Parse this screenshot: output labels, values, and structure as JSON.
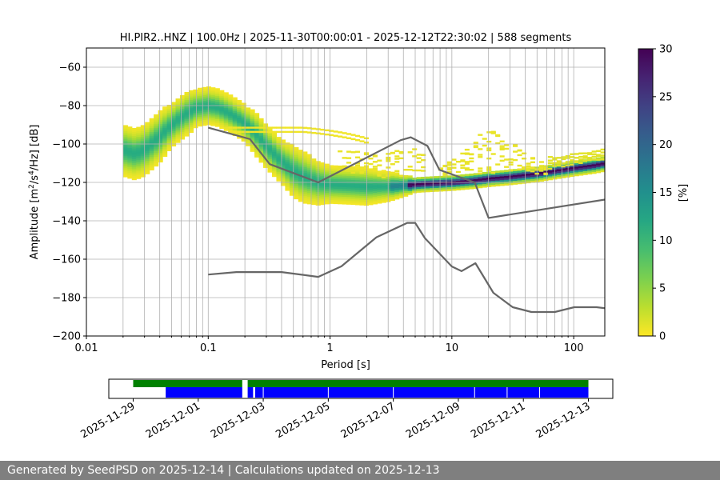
{
  "footer": {
    "text": "Generated by SeedPSD on 2025-12-14 | Calculations updated on 2025-12-13"
  },
  "colors": {
    "nlnm_nhnm": "#666666",
    "grid": "#b0b0b0",
    "coverage_green": "#008000",
    "coverage_blue": "#0000ff"
  },
  "chart_data": [
    {
      "type": "heatmap",
      "title": "HI.PIR2..HNZ | 100.0Hz | 2025-11-30T00:00:01 - 2025-12-12T22:30:02 | 588 segments",
      "xlabel_prefix": "Period [s]",
      "ylabel_text": "Amplitude [m",
      "ylabel_parts": [
        "Amplitude [m",
        "2",
        "/s",
        "4",
        "/Hz] [dB]"
      ],
      "x_scale": "log",
      "xlim": [
        0.01,
        180
      ],
      "ylim": [
        -200,
        -50
      ],
      "x_ticks": [
        0.01,
        0.1,
        1,
        10,
        100
      ],
      "x_tick_labels": [
        "0.01",
        "0.1",
        "1",
        "10",
        "100"
      ],
      "y_ticks": [
        -200,
        -180,
        -160,
        -140,
        -120,
        -100,
        -80,
        -60
      ],
      "y_tick_labels": [
        "−200",
        "−180",
        "−160",
        "−140",
        "−120",
        "−100",
        "−80",
        "−60"
      ],
      "grid": true,
      "colorbar": {
        "label": "[%]",
        "min": 0,
        "max": 30,
        "ticks": [
          0,
          5,
          10,
          15,
          20,
          25,
          30
        ],
        "tick_labels": [
          "0",
          "5",
          "10",
          "15",
          "20",
          "25",
          "30"
        ],
        "colormap": "viridis_r"
      },
      "psd_mode": {
        "period": [
          0.02,
          0.025,
          0.03,
          0.04,
          0.05,
          0.06,
          0.07,
          0.08,
          0.1,
          0.12,
          0.15,
          0.2,
          0.25,
          0.3,
          0.4,
          0.5,
          0.6,
          0.8,
          1,
          1.5,
          2,
          3,
          4,
          5,
          7,
          10,
          15,
          20,
          30,
          50,
          70,
          100,
          150,
          180
        ],
        "amplitude": [
          -103,
          -105,
          -103,
          -96,
          -90,
          -86,
          -83,
          -81,
          -80,
          -81,
          -84,
          -89,
          -95,
          -101,
          -109,
          -114,
          -117,
          -120,
          -121,
          -121.5,
          -122,
          -122,
          -121.5,
          -121,
          -120.5,
          -120,
          -119,
          -118,
          -117,
          -115.5,
          -114,
          -112.5,
          -111,
          -110
        ],
        "spread_db": [
          7,
          7,
          7,
          7,
          6,
          6,
          6,
          5,
          5,
          5,
          5,
          5,
          6,
          6,
          6,
          7,
          7,
          6,
          5,
          5,
          5,
          4,
          3,
          2,
          2,
          2,
          2,
          2,
          2,
          2,
          2,
          2,
          2,
          2
        ]
      },
      "nhnm": {
        "period": [
          0.1,
          0.22,
          0.32,
          0.8,
          3.8,
          4.6,
          6.3,
          7.9,
          15.4,
          20,
          354.8
        ],
        "amplitude": [
          -91.5,
          -97.4,
          -110.5,
          -120,
          -98,
          -96.5,
          -101,
          -113.5,
          -120,
          -138.5,
          -126
        ]
      },
      "nlnm": {
        "period": [
          0.1,
          0.17,
          0.4,
          0.8,
          1.24,
          2.4,
          4.3,
          5,
          6,
          10,
          12,
          15.6,
          21.9,
          31.6,
          45,
          70,
          101,
          154,
          328,
          600
        ],
        "amplitude": [
          -168,
          -166.7,
          -166.7,
          -169.2,
          -163.7,
          -148.6,
          -141.1,
          -141.1,
          -149,
          -163.8,
          -166.2,
          -162.1,
          -177.5,
          -185,
          -187.5,
          -187.5,
          -185,
          -185,
          -187.5,
          -184.4
        ]
      }
    },
    {
      "type": "bar",
      "name": "data-coverage",
      "x_ticks": [
        "2025-11-29",
        "2025-12-01",
        "2025-12-03",
        "2025-12-05",
        "2025-12-07",
        "2025-12-09",
        "2025-12-11",
        "2025-12-13"
      ],
      "xlim": [
        "2025-11-28T06:00",
        "2025-12-13T18:00"
      ],
      "green_intervals": [
        [
          "2025-11-29T00:00",
          "2025-12-02T08:30"
        ],
        [
          "2025-12-02T12:30",
          "2025-12-13T00:00"
        ]
      ],
      "blue_intervals": [
        [
          "2025-11-30T00:00",
          "2025-12-02T08:30"
        ],
        [
          "2025-12-02T12:30",
          "2025-12-02T16:30"
        ],
        [
          "2025-12-02T18:00",
          "2025-12-13T00:00"
        ]
      ],
      "blue_gaps": [
        "2025-12-03T00:00",
        "2025-12-05T00:00",
        "2025-12-07T00:00",
        "2025-12-09T12:00",
        "2025-12-10T12:00",
        "2025-12-11T12:00"
      ]
    }
  ]
}
